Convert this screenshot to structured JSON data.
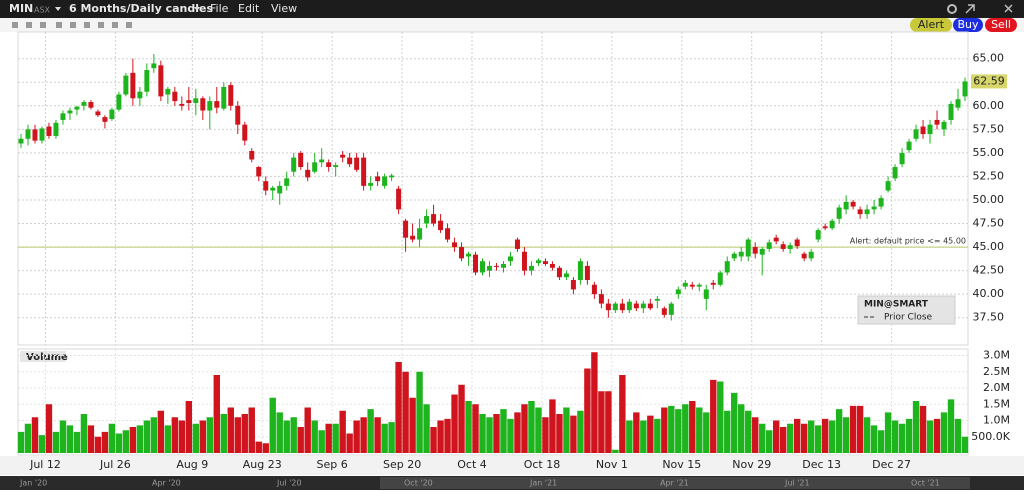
{
  "header": {
    "symbol": "MIN",
    "exchange": "ASX",
    "period": "6 Months/Daily candles",
    "menu": [
      "File",
      "Edit",
      "View"
    ],
    "buttons": [
      "Alert",
      "Buy",
      "Sell"
    ]
  },
  "chart_data": {
    "type": "candlestick",
    "categories": [
      null,
      null,
      null,
      null,
      "Jul 12",
      null,
      null,
      null,
      null,
      null,
      null,
      null,
      null,
      null,
      "Jul 26",
      null,
      null,
      null,
      null,
      null,
      null,
      null,
      null,
      null,
      null,
      "Aug 9",
      null,
      null,
      null,
      null,
      null,
      null,
      null,
      null,
      null,
      "Aug 23",
      null,
      null,
      null,
      null,
      null,
      null,
      null,
      null,
      null,
      "Sep 6",
      null,
      null,
      null,
      null,
      null,
      null,
      null,
      null,
      null,
      "Sep 20",
      null,
      null,
      null,
      null,
      null,
      null,
      null,
      null,
      null,
      "Oct 4",
      null,
      null,
      null,
      null,
      null,
      null,
      null,
      null,
      null,
      "Oct 18",
      null,
      null,
      null,
      null,
      null,
      null,
      null,
      null,
      null,
      "Nov 1",
      null,
      null,
      null,
      null,
      null,
      null,
      null,
      null,
      null,
      "Nov 15",
      null,
      null,
      null,
      null,
      null,
      null,
      null,
      null,
      null,
      "Nov 29",
      null,
      null,
      null,
      null,
      null,
      null,
      null,
      null,
      null,
      "Dec 13",
      null,
      null,
      null,
      null,
      null,
      null,
      null,
      null,
      null,
      "Dec 27",
      null,
      null,
      null,
      null,
      null,
      null,
      null,
      null,
      null,
      null
    ],
    "ohlc": [
      [
        56.0,
        57.0,
        55.5,
        56.5
      ],
      [
        56.5,
        58.0,
        55.8,
        57.5
      ],
      [
        57.5,
        58.0,
        56.0,
        56.3
      ],
      [
        56.3,
        57.8,
        56.0,
        57.6
      ],
      [
        57.8,
        58.2,
        56.5,
        56.8
      ],
      [
        56.8,
        58.5,
        56.5,
        58.2
      ],
      [
        58.5,
        59.5,
        58.0,
        59.2
      ],
      [
        59.2,
        59.8,
        58.5,
        59.5
      ],
      [
        59.6,
        60.0,
        59.0,
        59.9
      ],
      [
        60.0,
        60.6,
        59.5,
        60.4
      ],
      [
        60.4,
        60.6,
        59.6,
        59.8
      ],
      [
        59.4,
        59.6,
        58.8,
        59.0
      ],
      [
        58.8,
        59.0,
        57.6,
        58.3
      ],
      [
        58.6,
        59.8,
        58.4,
        59.6
      ],
      [
        59.6,
        61.5,
        59.4,
        61.2
      ],
      [
        61.2,
        63.5,
        61.0,
        63.2
      ],
      [
        63.5,
        65.0,
        60.0,
        60.8
      ],
      [
        60.8,
        62.0,
        60.0,
        61.5
      ],
      [
        61.5,
        64.5,
        61.0,
        63.8
      ],
      [
        64.0,
        65.5,
        63.5,
        64.5
      ],
      [
        64.3,
        64.8,
        60.5,
        61.0
      ],
      [
        61.2,
        62.0,
        60.2,
        61.8
      ],
      [
        61.5,
        62.0,
        60.0,
        60.5
      ],
      [
        60.2,
        61.0,
        59.5,
        60.0
      ],
      [
        60.6,
        62.0,
        59.5,
        60.3
      ],
      [
        60.3,
        61.8,
        59.0,
        60.8
      ],
      [
        60.8,
        61.0,
        58.5,
        59.5
      ],
      [
        59.5,
        61.0,
        57.5,
        60.5
      ],
      [
        60.5,
        62.0,
        59.2,
        59.8
      ],
      [
        59.7,
        62.5,
        59.5,
        62.0
      ],
      [
        62.2,
        62.5,
        59.5,
        60.0
      ],
      [
        60.0,
        60.5,
        57.0,
        58.0
      ],
      [
        58.0,
        58.3,
        55.8,
        56.3
      ],
      [
        55.2,
        55.5,
        54.0,
        54.3
      ],
      [
        53.5,
        53.6,
        52.0,
        52.5
      ],
      [
        52.0,
        52.5,
        50.5,
        51.0
      ],
      [
        51.0,
        51.5,
        50.0,
        51.3
      ],
      [
        50.7,
        52.0,
        49.5,
        51.5
      ],
      [
        51.5,
        53.0,
        51.0,
        52.3
      ],
      [
        53.0,
        55.0,
        52.5,
        54.5
      ],
      [
        55.0,
        55.2,
        53.2,
        53.5
      ],
      [
        53.2,
        54.0,
        52.0,
        52.4
      ],
      [
        53.0,
        55.0,
        52.8,
        54.0
      ],
      [
        54.0,
        55.5,
        53.5,
        54.3
      ],
      [
        54.0,
        54.3,
        53.0,
        53.5
      ],
      [
        53.5,
        54.0,
        52.5,
        53.7
      ],
      [
        54.8,
        55.2,
        54.0,
        54.5
      ],
      [
        54.5,
        55.0,
        53.5,
        53.8
      ],
      [
        54.5,
        55.0,
        53.0,
        53.2
      ],
      [
        54.5,
        55.0,
        51.0,
        51.5
      ],
      [
        51.5,
        52.5,
        51.0,
        51.8
      ],
      [
        52.5,
        53.0,
        51.5,
        52.0
      ],
      [
        51.5,
        52.8,
        51.2,
        52.5
      ],
      [
        52.4,
        52.8,
        52.0,
        52.6
      ],
      [
        51.2,
        51.5,
        48.5,
        49.0
      ],
      [
        47.8,
        48.0,
        44.5,
        46.0
      ],
      [
        46.2,
        47.5,
        45.5,
        45.8
      ],
      [
        45.8,
        48.0,
        45.0,
        47.0
      ],
      [
        47.5,
        49.0,
        47.0,
        48.3
      ],
      [
        48.5,
        49.5,
        47.2,
        47.5
      ],
      [
        47.8,
        48.5,
        46.5,
        46.8
      ],
      [
        47.0,
        47.5,
        45.5,
        45.8
      ],
      [
        45.5,
        46.0,
        44.5,
        45.0
      ],
      [
        45.0,
        45.5,
        43.5,
        43.8
      ],
      [
        44.0,
        44.5,
        43.0,
        44.3
      ],
      [
        44.2,
        44.5,
        42.0,
        42.3
      ],
      [
        42.3,
        43.8,
        42.0,
        43.5
      ],
      [
        42.5,
        43.5,
        41.8,
        43.0
      ],
      [
        43.0,
        43.3,
        42.5,
        42.9
      ],
      [
        42.8,
        43.5,
        42.3,
        43.2
      ],
      [
        43.5,
        44.5,
        43.0,
        44.0
      ],
      [
        45.8,
        46.0,
        44.5,
        44.8
      ],
      [
        44.5,
        45.0,
        42.0,
        42.5
      ],
      [
        42.5,
        43.5,
        42.0,
        43.0
      ],
      [
        43.3,
        43.8,
        43.0,
        43.6
      ],
      [
        43.5,
        43.8,
        43.0,
        43.2
      ],
      [
        43.2,
        43.5,
        42.5,
        42.8
      ],
      [
        42.8,
        43.0,
        41.5,
        41.8
      ],
      [
        41.8,
        42.5,
        41.5,
        42.2
      ],
      [
        41.5,
        41.8,
        40.0,
        40.5
      ],
      [
        41.5,
        43.8,
        41.0,
        43.5
      ],
      [
        43.0,
        43.5,
        41.0,
        41.5
      ],
      [
        41.0,
        41.3,
        39.5,
        40.0
      ],
      [
        40.0,
        40.5,
        38.5,
        39.0
      ],
      [
        39.0,
        39.5,
        37.5,
        38.3
      ],
      [
        38.3,
        39.2,
        38.0,
        39.0
      ],
      [
        39.0,
        39.5,
        38.0,
        38.3
      ],
      [
        38.3,
        39.5,
        38.0,
        39.2
      ],
      [
        39.0,
        39.3,
        38.2,
        38.5
      ],
      [
        38.5,
        39.3,
        38.0,
        39.0
      ],
      [
        39.0,
        39.5,
        38.3,
        38.5
      ],
      [
        39.3,
        39.8,
        38.5,
        39.5
      ],
      [
        38.5,
        38.7,
        37.5,
        37.8
      ],
      [
        37.8,
        39.2,
        37.2,
        39.0
      ],
      [
        40.0,
        40.8,
        39.5,
        40.5
      ],
      [
        40.8,
        41.5,
        40.5,
        41.2
      ],
      [
        41.0,
        41.3,
        40.5,
        40.8
      ],
      [
        40.8,
        41.2,
        40.3,
        41.0
      ],
      [
        39.5,
        41.0,
        38.3,
        40.5
      ],
      [
        41.2,
        41.5,
        40.5,
        41.0
      ],
      [
        41.0,
        42.5,
        40.8,
        42.3
      ],
      [
        42.3,
        44.0,
        42.0,
        43.5
      ],
      [
        43.8,
        44.5,
        43.5,
        44.3
      ],
      [
        44.0,
        45.0,
        43.5,
        44.5
      ],
      [
        44.0,
        46.0,
        43.5,
        45.8
      ],
      [
        45.0,
        45.5,
        43.8,
        44.3
      ],
      [
        44.2,
        45.0,
        42.0,
        44.8
      ],
      [
        44.8,
        45.8,
        44.5,
        45.5
      ],
      [
        46.0,
        46.3,
        45.3,
        45.6
      ],
      [
        45.3,
        45.6,
        44.5,
        44.8
      ],
      [
        44.8,
        45.5,
        44.3,
        45.2
      ],
      [
        45.8,
        46.0,
        44.8,
        45.1
      ],
      [
        44.3,
        44.5,
        43.5,
        43.8
      ],
      [
        43.8,
        44.8,
        43.5,
        44.5
      ],
      [
        45.8,
        47.0,
        45.5,
        46.8
      ],
      [
        47.2,
        47.5,
        46.8,
        47.0
      ],
      [
        47.0,
        48.0,
        46.8,
        47.8
      ],
      [
        48.0,
        49.5,
        47.5,
        49.2
      ],
      [
        49.0,
        50.5,
        48.5,
        49.8
      ],
      [
        49.8,
        50.0,
        49.0,
        49.3
      ],
      [
        49.0,
        49.3,
        48.0,
        48.5
      ],
      [
        48.5,
        49.5,
        48.0,
        49.0
      ],
      [
        49.0,
        50.0,
        48.5,
        49.3
      ],
      [
        49.3,
        50.5,
        49.0,
        50.2
      ],
      [
        51.0,
        52.5,
        50.8,
        52.0
      ],
      [
        52.3,
        53.8,
        52.0,
        53.5
      ],
      [
        53.8,
        55.5,
        53.5,
        55.0
      ],
      [
        55.3,
        56.5,
        55.0,
        56.2
      ],
      [
        56.5,
        58.0,
        56.2,
        57.5
      ],
      [
        57.8,
        58.5,
        56.5,
        57.0
      ],
      [
        57.0,
        58.5,
        56.0,
        58.0
      ],
      [
        58.5,
        59.5,
        57.5,
        58.0
      ],
      [
        57.5,
        58.5,
        56.8,
        58.3
      ],
      [
        58.5,
        60.5,
        58.0,
        60.2
      ],
      [
        59.8,
        61.8,
        59.5,
        60.7
      ],
      [
        61.0,
        63.0,
        60.5,
        62.59
      ]
    ],
    "ylim": [
      34.6,
      68.9
    ],
    "yticks": [
      {
        "value": 37.5,
        "label": "37.50"
      },
      {
        "value": 40,
        "label": "40.00"
      },
      {
        "value": 42.5,
        "label": "42.50"
      },
      {
        "value": 45,
        "label": "45.00"
      },
      {
        "value": 47.5,
        "label": "47.50"
      },
      {
        "value": 50,
        "label": "50.00"
      },
      {
        "value": 52.5,
        "label": "52.50"
      },
      {
        "value": 55,
        "label": "55.00"
      },
      {
        "value": 57.5,
        "label": "57.50"
      },
      {
        "value": 60,
        "label": "60.00"
      },
      {
        "value": 62.5,
        "label": "62.50"
      },
      {
        "value": 65,
        "label": "65.00"
      }
    ],
    "up_color": "#1eb41e",
    "down_color": "#d0141e",
    "grid": true,
    "alert": {
      "value": 45,
      "label": "Alert: default price <= 45.00",
      "color": "#b9cc6a"
    },
    "legend": {
      "title": "MIN@SMART",
      "item": "Prior Close"
    },
    "volume": {
      "title": "Volume",
      "values": [
        650000,
        900000,
        1100000,
        550000,
        1500000,
        650000,
        1000000,
        850000,
        650000,
        1200000,
        850000,
        500000,
        650000,
        900000,
        600000,
        700000,
        800000,
        850000,
        1000000,
        1100000,
        1300000,
        850000,
        1100000,
        1000000,
        1600000,
        900000,
        1000000,
        1100000,
        2400000,
        1200000,
        1400000,
        1100000,
        1200000,
        1400000,
        350000,
        300000,
        1700000,
        1250000,
        1000000,
        1100000,
        800000,
        1400000,
        1000000,
        700000,
        900000,
        900000,
        1300000,
        600000,
        1000000,
        1100000,
        1350000,
        1100000,
        900000,
        950000,
        2800000,
        2500000,
        1700000,
        2500000,
        1500000,
        800000,
        1000000,
        1050000,
        1800000,
        2100000,
        1600000,
        1500000,
        1200000,
        1100000,
        1200000,
        1350000,
        1050000,
        1250000,
        1500000,
        1600000,
        1400000,
        1100000,
        1650000,
        1200000,
        1400000,
        1150000,
        1300000,
        2600000,
        3100000,
        1900000,
        1900000,
        100000,
        2400000,
        1000000,
        1250000,
        1000000,
        1150000,
        1050000,
        1400000,
        1450000,
        1350000,
        1500000,
        1600000,
        1400000,
        1250000,
        2250000,
        2200000,
        1300000,
        1850000,
        1500000,
        1300000,
        1100000,
        900000,
        700000,
        1000000,
        800000,
        900000,
        1050000,
        900000,
        1000000,
        850000,
        1050000,
        1000000,
        1350000,
        1100000,
        1450000,
        1450000,
        1100000,
        850000,
        700000,
        1250000,
        1000000,
        900000,
        1050000,
        1600000,
        1450000,
        1000000,
        1050000,
        1250000,
        1650000,
        1050000,
        500000
      ],
      "ylim": [
        0,
        3200000
      ],
      "yticks": [
        {
          "value": 500000,
          "label": "500.0K"
        },
        {
          "value": 1000000,
          "label": "1.0M"
        },
        {
          "value": 1500000,
          "label": "1.5M"
        },
        {
          "value": 2000000,
          "label": "2.0M"
        },
        {
          "value": 2500000,
          "label": "2.5M"
        },
        {
          "value": 3000000,
          "label": "3.0M"
        }
      ]
    }
  },
  "timeline": [
    "Jan '20",
    "Apr '20",
    "Jul '20",
    "Oct '20",
    "Jan '21",
    "Apr '21",
    "Jul '21",
    "Oct '21"
  ]
}
